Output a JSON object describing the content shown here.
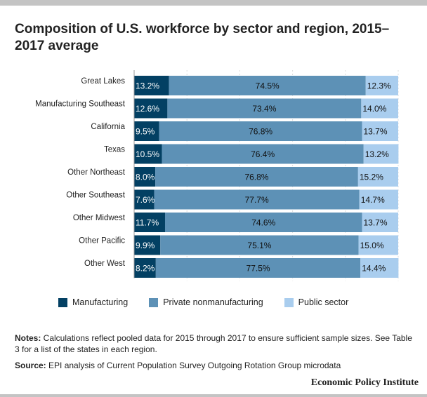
{
  "title": "Composition of U.S. workforce by sector and region, 2015–2017 average",
  "chart_data": {
    "type": "bar",
    "orientation": "horizontal-stacked-100",
    "title": "Composition of U.S. workforce by sector and region, 2015–2017 average",
    "categories": [
      "Great Lakes",
      "Manufacturing Southeast",
      "California",
      "Texas",
      "Other Northeast",
      "Other Southeast",
      "Other Midwest",
      "Other Pacific",
      "Other West"
    ],
    "series": [
      {
        "name": "Manufacturing",
        "color": "#034063",
        "label_color": "#ffffff",
        "values": [
          13.2,
          12.6,
          9.5,
          10.5,
          8.0,
          7.6,
          11.7,
          9.9,
          8.2
        ]
      },
      {
        "name": "Private nonmanufacturing",
        "color": "#5d91b6",
        "label_color": "#111111",
        "values": [
          74.5,
          73.4,
          76.8,
          76.4,
          76.8,
          77.7,
          74.6,
          75.1,
          77.5
        ]
      },
      {
        "name": "Public sector",
        "color": "#a9cdee",
        "label_color": "#111111",
        "values": [
          12.3,
          14.0,
          13.7,
          13.2,
          15.2,
          14.7,
          13.7,
          15.0,
          14.4
        ]
      }
    ],
    "xlim": [
      0,
      100
    ],
    "grid": true,
    "legend": "bottom",
    "value_suffix": "%"
  },
  "notes_label": "Notes:",
  "notes_text": " Calculations reflect pooled data for 2015 through 2017 to ensure sufficient sample sizes. See Table 3 for a list of the states in each region.",
  "source_label": "Source:",
  "source_text": " EPI analysis of Current Population Survey Outgoing Rotation Group microdata",
  "logo": "Economic Policy Institute"
}
